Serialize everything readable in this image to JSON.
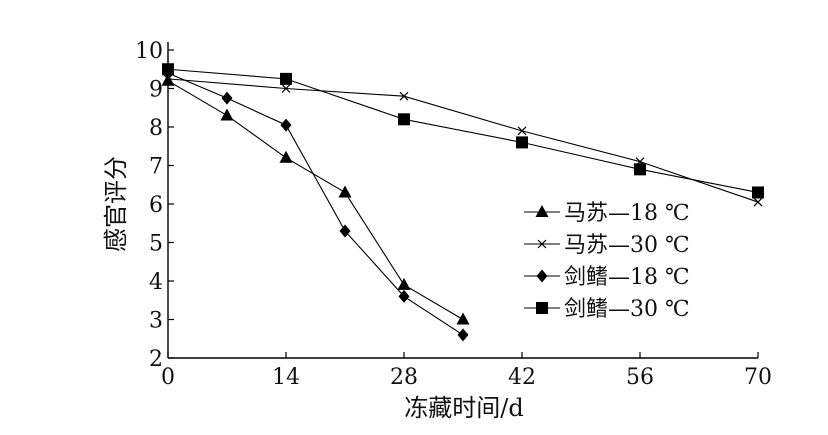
{
  "chart_data": {
    "type": "line",
    "title": "",
    "xlabel": "冻藏时间/d",
    "ylabel": "感官评分",
    "xlim": [
      0,
      70
    ],
    "ylim": [
      2,
      10
    ],
    "x_ticks": [
      0,
      14,
      28,
      42,
      56,
      70
    ],
    "y_ticks": [
      2,
      3,
      4,
      5,
      6,
      7,
      8,
      9,
      10
    ],
    "grid": false,
    "legend_position": "right",
    "series": [
      {
        "name": "马苏—18 ℃",
        "marker": "triangle",
        "color": "#000000",
        "x": [
          0,
          7,
          14,
          21,
          28,
          35
        ],
        "y": [
          9.2,
          8.3,
          7.2,
          6.3,
          3.9,
          3.0
        ]
      },
      {
        "name": "马苏—30 ℃",
        "marker": "x",
        "color": "#000000",
        "x": [
          0,
          14,
          28,
          42,
          56,
          70
        ],
        "y": [
          9.25,
          9.0,
          8.8,
          7.9,
          7.1,
          6.05
        ]
      },
      {
        "name": "剑鳍—18 ℃",
        "marker": "diamond",
        "color": "#000000",
        "x": [
          0,
          7,
          14,
          21,
          28,
          35
        ],
        "y": [
          9.4,
          8.75,
          8.05,
          5.3,
          3.6,
          2.6
        ]
      },
      {
        "name": "剑鳍—30 ℃",
        "marker": "square",
        "color": "#000000",
        "x": [
          0,
          14,
          28,
          42,
          56,
          70
        ],
        "y": [
          9.5,
          9.25,
          8.2,
          7.6,
          6.9,
          6.3
        ]
      }
    ]
  }
}
